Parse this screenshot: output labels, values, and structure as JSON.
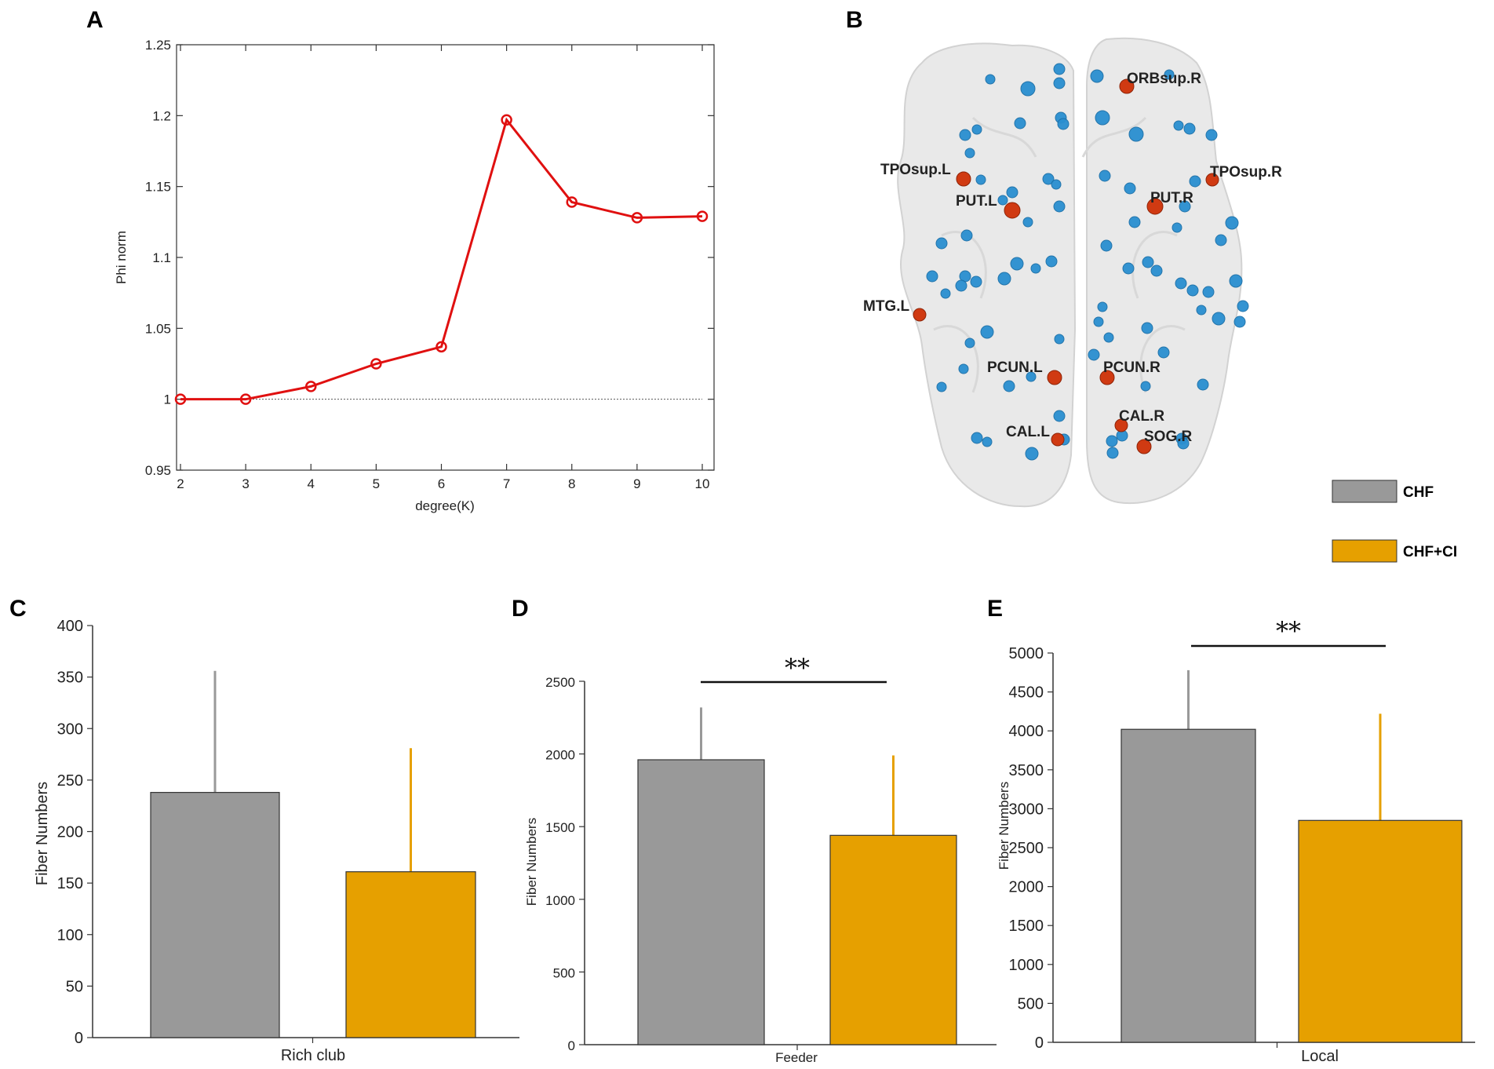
{
  "panel_labels": {
    "a": "A",
    "b": "B",
    "c": "C",
    "d": "D",
    "e": "E"
  },
  "colors": {
    "line": "#e01010",
    "chf": "#999999",
    "chf_ci": "#e6a000",
    "node_blue": "#2a8fd0",
    "node_red": "#d03a12"
  },
  "legend": {
    "chf": "CHF",
    "chf_ci": "CHF+CI"
  },
  "significance": {
    "d": "**",
    "e": "**"
  },
  "brain": {
    "hub_labels": [
      "ORBsup.R",
      "TPOsup.L",
      "PUT.L",
      "PUT.R",
      "TPOsup.R",
      "MTG.L",
      "PCUN.L",
      "PCUN.R",
      "CAL.R",
      "CAL.L",
      "SOG.R"
    ]
  },
  "chart_data": [
    {
      "panel": "A",
      "type": "line",
      "title": "",
      "xlabel": "degree(K)",
      "ylabel": "Phi norm",
      "x": [
        2,
        3,
        4,
        5,
        6,
        7,
        8,
        9,
        10
      ],
      "values": [
        1.0,
        1.0,
        1.009,
        1.025,
        1.037,
        1.197,
        1.139,
        1.128,
        1.129
      ],
      "xlim": [
        2,
        10
      ],
      "ylim": [
        0.95,
        1.25
      ],
      "xticks": [
        "2",
        "3",
        "4",
        "5",
        "6",
        "7",
        "8",
        "9",
        "10"
      ],
      "yticks": [
        "0.95",
        "1",
        "1.05",
        "1.1",
        "1.15",
        "1.2",
        "1.25"
      ],
      "reference_line": 1.0
    },
    {
      "panel": "C",
      "type": "bar",
      "xlabel": "Rich club",
      "ylabel": "Fiber Numbers",
      "series": [
        {
          "name": "CHF",
          "values": [
            238
          ]
        },
        {
          "name": "CHF+CI",
          "values": [
            161
          ]
        }
      ],
      "error_upper": [
        356,
        281
      ],
      "ylim": [
        0,
        400
      ],
      "yticks": [
        "0",
        "50",
        "100",
        "150",
        "200",
        "250",
        "300",
        "350",
        "400"
      ]
    },
    {
      "panel": "D",
      "type": "bar",
      "xlabel": "Feeder",
      "ylabel": "Fiber Numbers",
      "series": [
        {
          "name": "CHF",
          "values": [
            1960
          ]
        },
        {
          "name": "CHF+CI",
          "values": [
            1440
          ]
        }
      ],
      "error_upper": [
        2320,
        1990
      ],
      "ylim": [
        0,
        2500
      ],
      "yticks": [
        "0",
        "500",
        "1000",
        "1500",
        "2000",
        "2500"
      ]
    },
    {
      "panel": "E",
      "type": "bar",
      "xlabel": "Local",
      "ylabel": "Fiber Numbers",
      "series": [
        {
          "name": "CHF",
          "values": [
            4020
          ]
        },
        {
          "name": "CHF+CI",
          "values": [
            2850
          ]
        }
      ],
      "error_upper": [
        4780,
        4220
      ],
      "ylim": [
        0,
        5000
      ],
      "yticks": [
        "0",
        "500",
        "1000",
        "1500",
        "2000",
        "2500",
        "3000",
        "3500",
        "4000",
        "4500",
        "5000"
      ]
    }
  ]
}
